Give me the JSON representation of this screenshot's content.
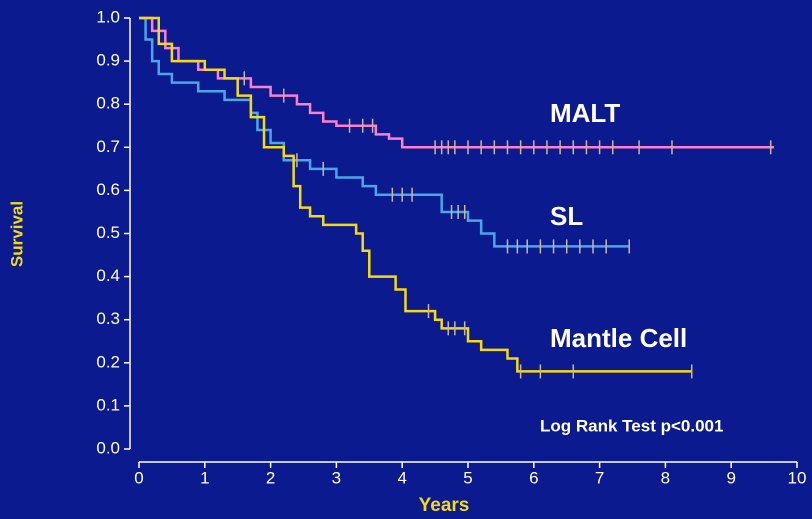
{
  "chart_data": {
    "type": "step",
    "x_label": "Years",
    "y_label": "Survival",
    "annotation": "Log Rank Test p<0.001",
    "xlim": [
      0,
      10
    ],
    "ylim": [
      0,
      1
    ],
    "xticks": [
      0,
      1,
      2,
      3,
      4,
      5,
      6,
      7,
      8,
      9,
      10
    ],
    "yticks": [
      {
        "value": 0,
        "label": "0.0"
      },
      0.1,
      0.2,
      0.3,
      0.4,
      0.5,
      0.6,
      0.7,
      0.8,
      0.9,
      {
        "value": 1,
        "label": "1.0"
      }
    ],
    "censor_color": "#c9b79c",
    "series": [
      {
        "name": "MALT",
        "color": "#ff7fc8",
        "x": [
          0,
          0.2,
          0.4,
          0.6,
          0.9,
          1.2,
          1.7,
          2.0,
          2.4,
          2.6,
          2.8,
          3.0,
          3.6,
          3.8,
          4.0,
          9.65
        ],
        "values": [
          1.0,
          0.97,
          0.93,
          0.9,
          0.88,
          0.86,
          0.84,
          0.82,
          0.8,
          0.78,
          0.76,
          0.75,
          0.73,
          0.72,
          0.7,
          0.7
        ],
        "censor_x": [
          1.6,
          2.2,
          3.2,
          3.4,
          3.55,
          4.5,
          4.6,
          4.7,
          4.8,
          5.0,
          5.2,
          5.4,
          5.6,
          5.8,
          6.0,
          6.2,
          6.4,
          6.6,
          6.8,
          7.0,
          7.2,
          7.6,
          8.1,
          9.6
        ],
        "censor_values": [
          0.86,
          0.82,
          0.75,
          0.75,
          0.75,
          0.7,
          0.7,
          0.7,
          0.7,
          0.7,
          0.7,
          0.7,
          0.7,
          0.7,
          0.7,
          0.7,
          0.7,
          0.7,
          0.7,
          0.7,
          0.7,
          0.7,
          0.7,
          0.7
        ]
      },
      {
        "name": "SL",
        "color": "#4aa6e6",
        "x": [
          0,
          0.1,
          0.2,
          0.3,
          0.5,
          0.9,
          1.3,
          1.7,
          1.8,
          2.0,
          2.2,
          2.6,
          3.0,
          3.4,
          3.6,
          4.6,
          5.0,
          5.2,
          5.4,
          7.45
        ],
        "values": [
          1.0,
          0.95,
          0.9,
          0.87,
          0.85,
          0.83,
          0.81,
          0.78,
          0.74,
          0.71,
          0.67,
          0.65,
          0.63,
          0.61,
          0.59,
          0.55,
          0.53,
          0.5,
          0.47,
          0.47
        ],
        "censor_x": [
          2.4,
          2.8,
          3.85,
          4.0,
          4.15,
          4.75,
          4.85,
          4.95,
          5.6,
          5.75,
          5.9,
          6.1,
          6.3,
          6.5,
          6.7,
          6.9,
          7.1,
          7.45
        ],
        "censor_values": [
          0.67,
          0.65,
          0.59,
          0.59,
          0.59,
          0.55,
          0.55,
          0.55,
          0.47,
          0.47,
          0.47,
          0.47,
          0.47,
          0.47,
          0.47,
          0.47,
          0.47,
          0.47
        ]
      },
      {
        "name": "Mantle Cell",
        "color": "#f5da12",
        "x": [
          0,
          0.3,
          0.5,
          1.0,
          1.3,
          1.5,
          1.7,
          1.9,
          2.2,
          2.35,
          2.45,
          2.6,
          2.8,
          3.3,
          3.4,
          3.5,
          3.9,
          4.05,
          4.5,
          4.6,
          5.0,
          5.2,
          5.6,
          5.75,
          8.4
        ],
        "values": [
          1.0,
          0.94,
          0.9,
          0.88,
          0.86,
          0.82,
          0.77,
          0.7,
          0.68,
          0.61,
          0.56,
          0.54,
          0.52,
          0.5,
          0.46,
          0.4,
          0.37,
          0.32,
          0.3,
          0.28,
          0.25,
          0.23,
          0.21,
          0.18,
          0.18
        ],
        "censor_x": [
          4.4,
          4.7,
          4.8,
          4.95,
          5.8,
          6.1,
          6.6,
          8.4
        ],
        "censor_values": [
          0.32,
          0.28,
          0.28,
          0.28,
          0.18,
          0.18,
          0.18,
          0.18
        ]
      }
    ]
  }
}
